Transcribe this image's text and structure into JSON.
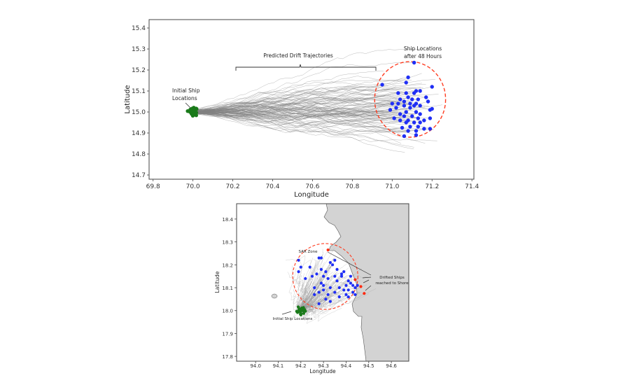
{
  "chart_data": [
    {
      "type": "scatter",
      "title": "",
      "xlabel": "Longitude",
      "ylabel": "Latitude",
      "xlim": [
        69.78,
        71.41
      ],
      "ylim": [
        14.68,
        15.44
      ],
      "xticks": [
        "69.8",
        "70.0",
        "70.2",
        "70.4",
        "70.6",
        "70.8",
        "71.0",
        "71.2",
        "71.4"
      ],
      "yticks": [
        "14.7",
        "14.8",
        "14.9",
        "15.0",
        "15.1",
        "15.2",
        "15.3",
        "15.4"
      ],
      "annotations": {
        "initial": "Initial Ship Locations",
        "initial_lines": [
          "Initial Ship",
          "Locations"
        ],
        "trajectories": "Predicted Drift Trajectories",
        "final_lines": [
          "Ship Locations",
          "after 48 Hours"
        ]
      },
      "initial_center": [
        70.0,
        15.0
      ],
      "search_circle": {
        "center": [
          71.09,
          15.06
        ],
        "rx": 0.178,
        "ry": 0.18,
        "color": "#ff3b1f"
      },
      "colors": {
        "initial": "#1a7a1a",
        "final": "#1f2ef5",
        "trajectory": "#808080"
      },
      "final_points": [
        [
          71.11,
          15.235
        ],
        [
          71.08,
          15.165
        ],
        [
          70.95,
          15.13
        ],
        [
          71.07,
          15.14
        ],
        [
          71.2,
          15.12
        ],
        [
          71.03,
          15.09
        ],
        [
          71.07,
          15.09
        ],
        [
          71.11,
          15.09
        ],
        [
          71.14,
          15.1
        ],
        [
          71.12,
          15.1
        ],
        [
          71.17,
          15.07
        ],
        [
          71.08,
          15.07
        ],
        [
          71.1,
          15.06
        ],
        [
          71.13,
          15.06
        ],
        [
          71.04,
          15.06
        ],
        [
          71.06,
          15.05
        ],
        [
          71.12,
          15.04
        ],
        [
          71.18,
          15.05
        ],
        [
          71.14,
          15.03
        ],
        [
          71.0,
          15.04
        ],
        [
          71.03,
          15.04
        ],
        [
          71.09,
          15.04
        ],
        [
          71.06,
          15.03
        ],
        [
          71.11,
          15.03
        ],
        [
          71.02,
          15.02
        ],
        [
          71.09,
          15.02
        ],
        [
          71.19,
          15.01
        ],
        [
          71.2,
          15.015
        ],
        [
          70.99,
          15.01
        ],
        [
          71.07,
          15.0
        ],
        [
          71.12,
          15.0
        ],
        [
          71.04,
          14.99
        ],
        [
          71.14,
          14.99
        ],
        [
          71.06,
          14.98
        ],
        [
          71.1,
          14.98
        ],
        [
          71.01,
          14.97
        ],
        [
          71.13,
          14.97
        ],
        [
          71.19,
          14.97
        ],
        [
          71.04,
          14.96
        ],
        [
          71.08,
          14.96
        ],
        [
          71.16,
          14.96
        ],
        [
          71.07,
          14.95
        ],
        [
          71.11,
          14.95
        ],
        [
          71.14,
          14.95
        ],
        [
          71.05,
          14.925
        ],
        [
          71.09,
          14.93
        ],
        [
          71.13,
          14.93
        ],
        [
          71.19,
          14.92
        ],
        [
          71.08,
          14.91
        ],
        [
          71.12,
          14.91
        ],
        [
          71.16,
          14.92
        ],
        [
          71.06,
          14.885
        ],
        [
          71.12,
          14.89
        ]
      ]
    },
    {
      "type": "scatter",
      "title": "",
      "xlabel": "Longitude",
      "ylabel": "Latitude",
      "xlim": [
        93.916,
        94.677
      ],
      "ylim": [
        17.779,
        18.467
      ],
      "xticks": [
        "94.0",
        "94.1",
        "94.2",
        "94.3",
        "94.4",
        "94.5",
        "94.6"
      ],
      "yticks": [
        "17.8",
        "17.9",
        "18.0",
        "18.1",
        "18.2",
        "18.3",
        "18.4"
      ],
      "annotations": {
        "initial": "Initial Ship Locations",
        "sar": "SAR Zone",
        "shore_lines": [
          "Drifted Ships",
          "reached to Shore"
        ]
      },
      "initial_center": [
        94.2,
        18.0
      ],
      "search_circle": {
        "center": [
          94.308,
          18.149
        ],
        "rx": 0.144,
        "ry": 0.144,
        "color": "#ff3b1f"
      },
      "colors": {
        "initial": "#1a7a1a",
        "final": "#1f2ef5",
        "shore": "#ff2a10",
        "land": "#d3d3d3",
        "trajectory": "#999999"
      },
      "final_points": [
        [
          94.19,
          18.22
        ],
        [
          94.28,
          18.23
        ],
        [
          94.29,
          18.23
        ],
        [
          94.33,
          18.21
        ],
        [
          94.35,
          18.22
        ],
        [
          94.34,
          18.2
        ],
        [
          94.2,
          18.19
        ],
        [
          94.24,
          18.19
        ],
        [
          94.29,
          18.18
        ],
        [
          94.31,
          18.17
        ],
        [
          94.36,
          18.18
        ],
        [
          94.39,
          18.17
        ],
        [
          94.38,
          18.16
        ],
        [
          94.19,
          18.17
        ],
        [
          94.27,
          18.16
        ],
        [
          94.25,
          18.15
        ],
        [
          94.3,
          18.15
        ],
        [
          94.32,
          18.14
        ],
        [
          94.35,
          18.15
        ],
        [
          94.38,
          18.15
        ],
        [
          94.42,
          18.15
        ],
        [
          94.41,
          18.13
        ],
        [
          94.36,
          18.13
        ],
        [
          94.22,
          18.14
        ],
        [
          94.4,
          18.11
        ],
        [
          94.42,
          18.12
        ],
        [
          94.43,
          18.11
        ],
        [
          94.44,
          18.1
        ],
        [
          94.45,
          18.11
        ],
        [
          94.37,
          18.1
        ],
        [
          94.33,
          18.1
        ],
        [
          94.3,
          18.09
        ],
        [
          94.26,
          18.1
        ],
        [
          94.29,
          18.12
        ],
        [
          94.39,
          18.09
        ],
        [
          94.41,
          18.09
        ],
        [
          94.43,
          18.08
        ],
        [
          94.35,
          18.08
        ],
        [
          94.4,
          18.07
        ],
        [
          94.37,
          18.06
        ],
        [
          94.44,
          18.07
        ],
        [
          94.32,
          18.07
        ],
        [
          94.28,
          18.08
        ],
        [
          94.26,
          18.07
        ],
        [
          94.31,
          18.05
        ],
        [
          94.28,
          18.03
        ],
        [
          94.33,
          18.04
        ],
        [
          94.3,
          18.11
        ],
        [
          94.41,
          18.06
        ]
      ],
      "shore_points": [
        [
          94.32,
          18.265
        ],
        [
          94.44,
          18.135
        ],
        [
          94.465,
          18.105
        ],
        [
          94.48,
          18.075
        ]
      ]
    }
  ]
}
